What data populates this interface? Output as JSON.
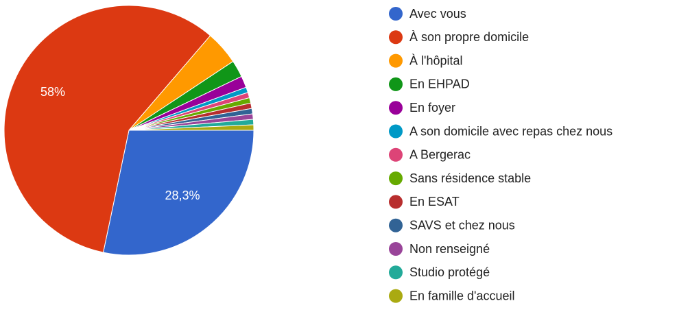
{
  "chart_data": {
    "type": "pie",
    "categories": [
      "Avec vous",
      "À son propre domicile",
      "À l'hôpital",
      "En EHPAD",
      "En foyer",
      "A son domicile avec repas chez nous",
      "A Bergerac",
      "Sans résidence stable",
      "En ESAT",
      "SAVS et chez nous",
      "Non renseigné",
      "Studio protégé",
      "En famille d'accueil"
    ],
    "values": [
      28.3,
      58,
      4.4,
      2.2,
      1.5,
      0.7,
      0.7,
      0.7,
      0.7,
      0.7,
      0.7,
      0.7,
      0.7
    ],
    "value_labels": [
      "28,3%",
      "58%",
      null,
      null,
      null,
      null,
      null,
      null,
      null,
      null,
      null,
      null,
      null
    ],
    "colors": [
      "#3366cc",
      "#dc3912",
      "#ff9900",
      "#109618",
      "#990099",
      "#0099c6",
      "#dd4477",
      "#66aa00",
      "#b82e2e",
      "#316395",
      "#994499",
      "#22aa99",
      "#aaaa11"
    ],
    "legend": "right"
  }
}
